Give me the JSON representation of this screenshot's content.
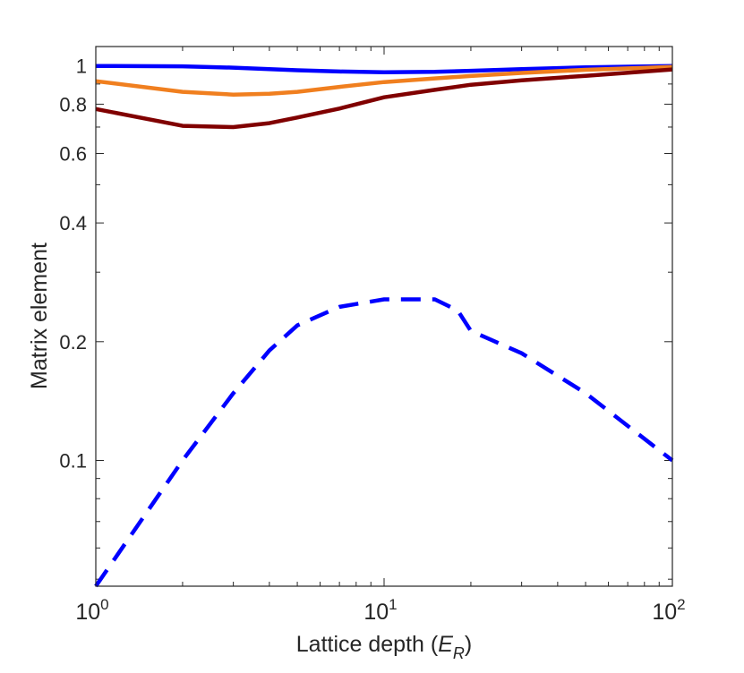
{
  "chart_data": {
    "type": "line",
    "title": "",
    "xlabel": "Lattice depth (E_R)",
    "xlabel_parts": {
      "prefix": "Lattice depth (",
      "var": "E",
      "sub": "R",
      "suffix": ")"
    },
    "ylabel": "Matrix element",
    "xscale": "log",
    "yscale": "log",
    "xlim": [
      1,
      100
    ],
    "ylim": [
      0.048,
      1.12
    ],
    "xticks": [
      {
        "base": "10",
        "exp": "0",
        "value": 1
      },
      {
        "base": "10",
        "exp": "1",
        "value": 10
      },
      {
        "base": "10",
        "exp": "2",
        "value": 100
      }
    ],
    "yticks": [
      {
        "label": "0.1",
        "value": 0.1
      },
      {
        "label": "0.2",
        "value": 0.2
      },
      {
        "label": "0.4",
        "value": 0.4
      },
      {
        "label": "0.6",
        "value": 0.6
      },
      {
        "label": "0.8",
        "value": 0.8
      },
      {
        "label": "1",
        "value": 1
      }
    ],
    "grid": false,
    "legend": "none",
    "series": [
      {
        "color": "#0000ff",
        "style": "solid",
        "x": [
          1,
          2,
          3,
          4,
          5,
          7,
          10,
          15,
          20,
          30,
          50,
          100
        ],
        "y": [
          1.0,
          0.998,
          0.99,
          0.982,
          0.975,
          0.968,
          0.964,
          0.966,
          0.972,
          0.982,
          0.992,
          1.0
        ]
      },
      {
        "color": "#f07f1f",
        "style": "solid",
        "x": [
          1,
          2,
          3,
          4,
          5,
          7,
          10,
          15,
          20,
          30,
          50,
          100
        ],
        "y": [
          0.915,
          0.86,
          0.846,
          0.85,
          0.86,
          0.885,
          0.91,
          0.93,
          0.943,
          0.96,
          0.978,
          0.995
        ]
      },
      {
        "color": "#800000",
        "style": "solid",
        "x": [
          1,
          2,
          3,
          4,
          5,
          7,
          10,
          15,
          20,
          30,
          50,
          100
        ],
        "y": [
          0.778,
          0.705,
          0.7,
          0.716,
          0.74,
          0.78,
          0.833,
          0.87,
          0.896,
          0.92,
          0.944,
          0.98
        ]
      },
      {
        "color": "#0000ff",
        "style": "dashed",
        "x": [
          1,
          2,
          3,
          4,
          5,
          7,
          10,
          15,
          18,
          20,
          30,
          50,
          100
        ],
        "y": [
          0.048,
          0.1,
          0.148,
          0.19,
          0.22,
          0.245,
          0.256,
          0.256,
          0.24,
          0.213,
          0.187,
          0.148,
          0.1
        ]
      }
    ]
  }
}
